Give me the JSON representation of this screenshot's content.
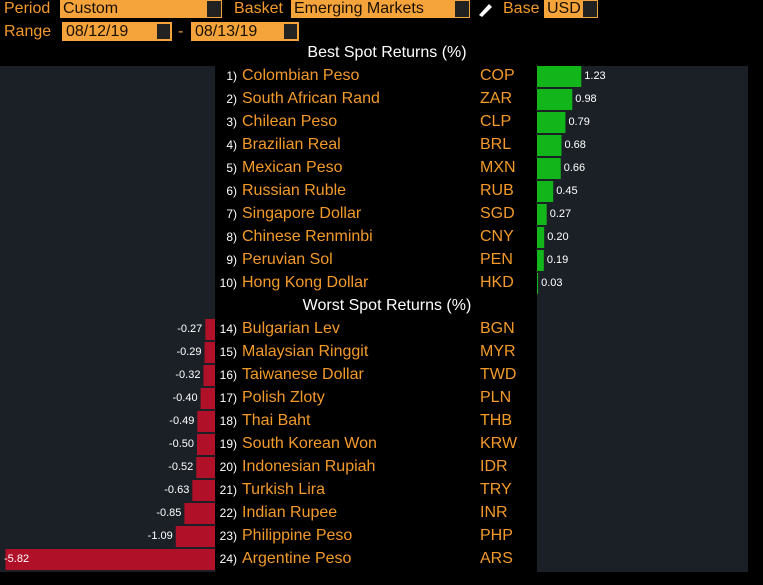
{
  "controls": {
    "period_label": "Period",
    "period_value": "Custom",
    "basket_label": "Basket",
    "basket_value": "Emerging Markets",
    "base_label": "Base",
    "base_value": "USD",
    "range_label": "Range",
    "range_start": "08/12/19",
    "range_separator": "-",
    "range_end": "08/13/19"
  },
  "best": {
    "title": "Best Spot Returns (%)",
    "rows": [
      {
        "rank": "1)",
        "name": "Colombian Peso",
        "code": "COP",
        "value": 1.23
      },
      {
        "rank": "2)",
        "name": "South African Rand",
        "code": "ZAR",
        "value": 0.98
      },
      {
        "rank": "3)",
        "name": "Chilean Peso",
        "code": "CLP",
        "value": 0.79
      },
      {
        "rank": "4)",
        "name": "Brazilian Real",
        "code": "BRL",
        "value": 0.68
      },
      {
        "rank": "5)",
        "name": "Mexican Peso",
        "code": "MXN",
        "value": 0.66
      },
      {
        "rank": "6)",
        "name": "Russian Ruble",
        "code": "RUB",
        "value": 0.45
      },
      {
        "rank": "7)",
        "name": "Singapore Dollar",
        "code": "SGD",
        "value": 0.27
      },
      {
        "rank": "8)",
        "name": "Chinese Renminbi",
        "code": "CNY",
        "value": 0.2,
        "value_label": "0.20"
      },
      {
        "rank": "9)",
        "name": "Peruvian Sol",
        "code": "PEN",
        "value": 0.19
      },
      {
        "rank": "10)",
        "name": "Hong Kong Dollar",
        "code": "HKD",
        "value": 0.03
      }
    ]
  },
  "worst": {
    "title": "Worst Spot Returns (%)",
    "rows": [
      {
        "rank": "14)",
        "name": "Bulgarian Lev",
        "code": "BGN",
        "value": -0.27
      },
      {
        "rank": "15)",
        "name": "Malaysian Ringgit",
        "code": "MYR",
        "value": -0.29
      },
      {
        "rank": "16)",
        "name": "Taiwanese Dollar",
        "code": "TWD",
        "value": -0.32
      },
      {
        "rank": "17)",
        "name": "Polish Zloty",
        "code": "PLN",
        "value": -0.4,
        "value_label": "-0.40"
      },
      {
        "rank": "18)",
        "name": "Thai Baht",
        "code": "THB",
        "value": -0.49
      },
      {
        "rank": "19)",
        "name": "South Korean Won",
        "code": "KRW",
        "value": -0.5,
        "value_label": "-0.50"
      },
      {
        "rank": "20)",
        "name": "Indonesian Rupiah",
        "code": "IDR",
        "value": -0.52
      },
      {
        "rank": "21)",
        "name": "Turkish Lira",
        "code": "TRY",
        "value": -0.63
      },
      {
        "rank": "22)",
        "name": "Indian Rupee",
        "code": "INR",
        "value": -0.85
      },
      {
        "rank": "23)",
        "name": "Philippine Peso",
        "code": "PHP",
        "value": -1.09
      },
      {
        "rank": "24)",
        "name": "Argentine Peso",
        "code": "ARS",
        "value": -5.82
      }
    ]
  }
}
